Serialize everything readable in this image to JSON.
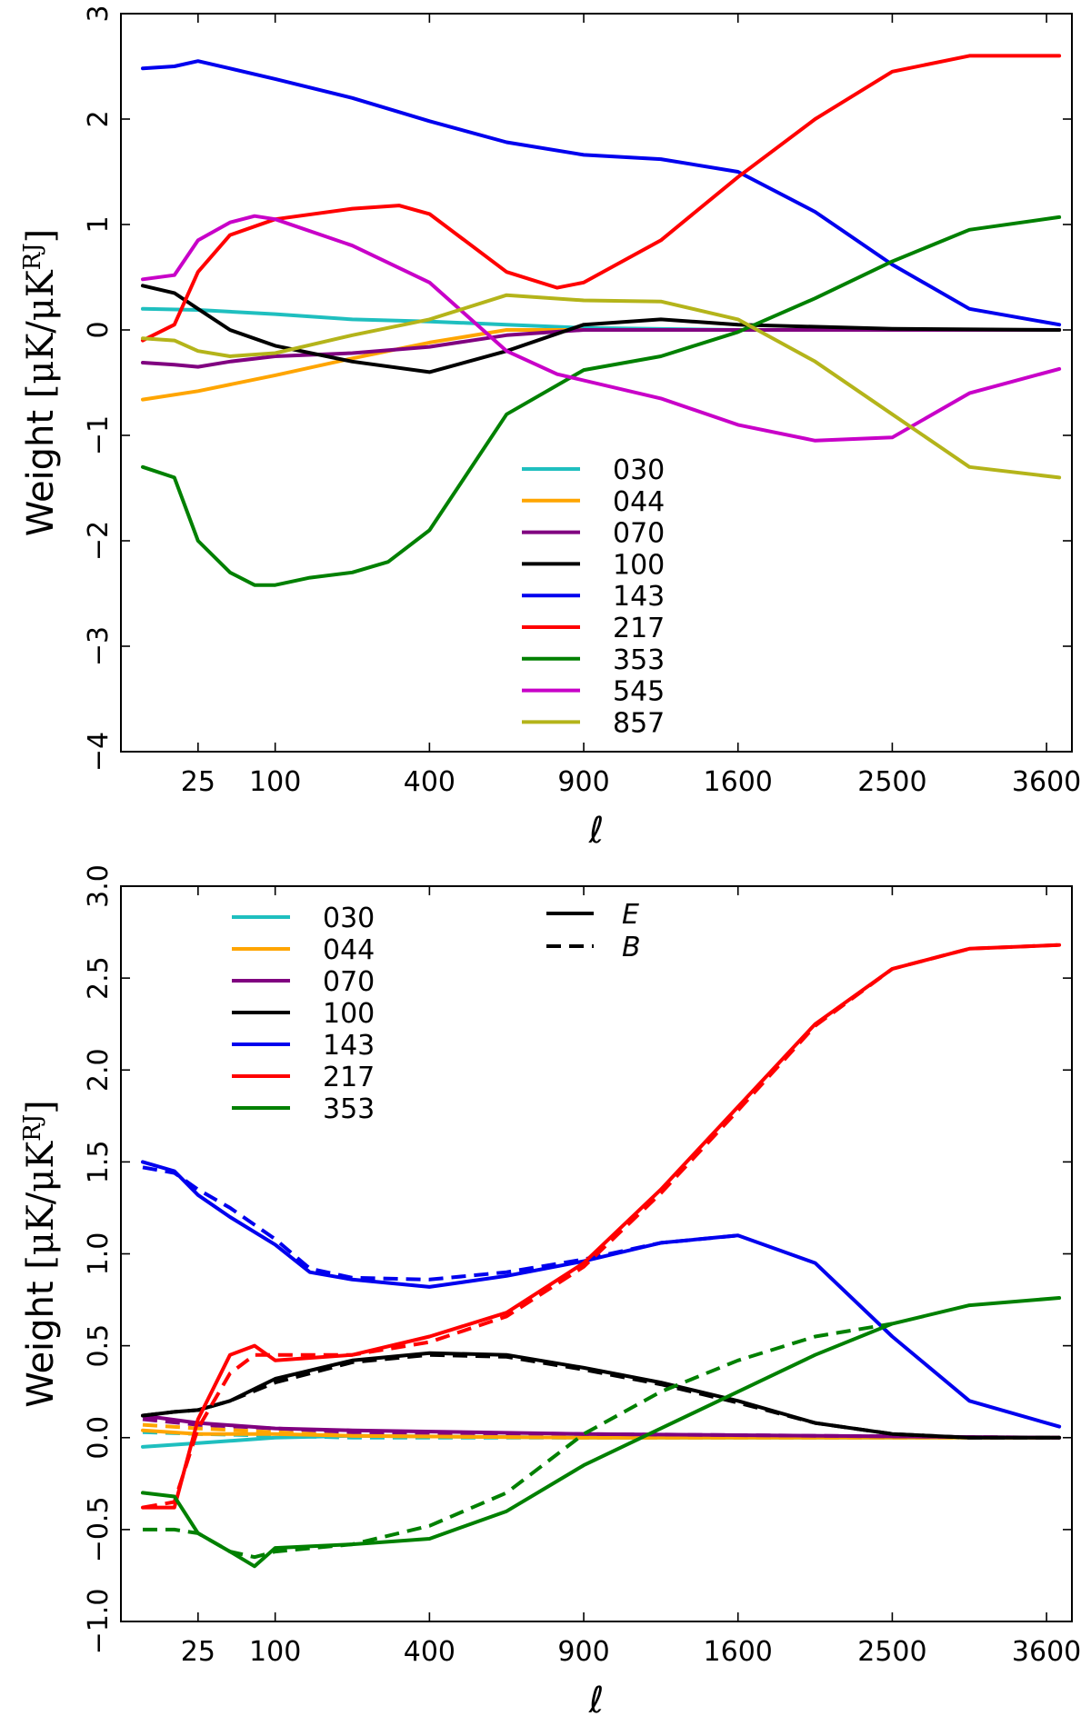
{
  "chart_data": [
    {
      "type": "line",
      "xlabel": "ℓ",
      "ylabel": "Weight",
      "ylabel_unit": "[μK/μK",
      "ylabel_unit_sup": "RJ",
      "ylabel_unit_close": "]",
      "x_scale": "sqrt",
      "xlim": [
        0,
        3800
      ],
      "ylim": [
        -4,
        3
      ],
      "x_ticks": [
        25,
        100,
        400,
        900,
        1600,
        2500,
        3600
      ],
      "y_ticks": [
        -4,
        -3,
        -2,
        -1,
        0,
        1,
        2,
        3
      ],
      "y_tick_labels": [
        "−4",
        "−3",
        "−2",
        "−1",
        "0",
        "1",
        "2",
        "3"
      ],
      "legend_position": "center",
      "series": [
        {
          "name": "030",
          "color": "#1fbfbf",
          "x": [
            2,
            25,
            100,
            225,
            400,
            625,
            900,
            1600,
            3700
          ],
          "y": [
            0.2,
            0.19,
            0.15,
            0.1,
            0.08,
            0.05,
            0.02,
            0.0,
            0.0
          ]
        },
        {
          "name": "044",
          "color": "#ffa500",
          "x": [
            2,
            25,
            100,
            225,
            400,
            625,
            900,
            1600,
            3700
          ],
          "y": [
            -0.66,
            -0.58,
            -0.43,
            -0.27,
            -0.12,
            0.0,
            0.0,
            0.0,
            0.0
          ]
        },
        {
          "name": "070",
          "color": "#800080",
          "x": [
            2,
            12,
            25,
            50,
            100,
            225,
            400,
            625,
            900,
            1600,
            3700
          ],
          "y": [
            -0.31,
            -0.33,
            -0.35,
            -0.3,
            -0.25,
            -0.22,
            -0.16,
            -0.05,
            0.0,
            0.0,
            0.0
          ]
        },
        {
          "name": "100",
          "color": "#000000",
          "x": [
            2,
            12,
            25,
            50,
            100,
            225,
            400,
            625,
            900,
            1225,
            1600,
            2500,
            3700
          ],
          "y": [
            0.42,
            0.35,
            0.2,
            0.0,
            -0.15,
            -0.3,
            -0.4,
            -0.2,
            0.05,
            0.1,
            0.05,
            0.01,
            0.0
          ]
        },
        {
          "name": "143",
          "color": "#0000ee",
          "x": [
            2,
            12,
            25,
            50,
            100,
            225,
            400,
            625,
            900,
            1225,
            1600,
            2025,
            2500,
            3025,
            3700
          ],
          "y": [
            2.48,
            2.5,
            2.55,
            2.48,
            2.38,
            2.2,
            1.98,
            1.78,
            1.66,
            1.62,
            1.5,
            1.12,
            0.62,
            0.2,
            0.05
          ]
        },
        {
          "name": "217",
          "color": "#ff0000",
          "x": [
            2,
            12,
            25,
            50,
            100,
            225,
            325,
            400,
            625,
            800,
            900,
            1225,
            1600,
            2025,
            2500,
            3025,
            3700
          ],
          "y": [
            -0.1,
            0.05,
            0.55,
            0.9,
            1.05,
            1.15,
            1.18,
            1.1,
            0.55,
            0.4,
            0.45,
            0.85,
            1.45,
            2.0,
            2.45,
            2.6,
            2.6
          ]
        },
        {
          "name": "353",
          "color": "#008000",
          "x": [
            2,
            12,
            25,
            50,
            75,
            100,
            150,
            225,
            300,
            400,
            625,
            900,
            1225,
            1600,
            2025,
            2500,
            3025,
            3700
          ],
          "y": [
            -1.3,
            -1.4,
            -2.0,
            -2.3,
            -2.42,
            -2.42,
            -2.35,
            -2.3,
            -2.2,
            -1.9,
            -0.8,
            -0.38,
            -0.25,
            -0.02,
            0.3,
            0.65,
            0.95,
            1.07
          ]
        },
        {
          "name": "545",
          "color": "#c800c8",
          "x": [
            2,
            12,
            25,
            50,
            75,
            100,
            225,
            400,
            625,
            800,
            1225,
            1600,
            2025,
            2500,
            3025,
            3700
          ],
          "y": [
            0.48,
            0.52,
            0.85,
            1.02,
            1.08,
            1.05,
            0.8,
            0.45,
            -0.2,
            -0.42,
            -0.65,
            -0.9,
            -1.05,
            -1.02,
            -0.6,
            -0.37
          ]
        },
        {
          "name": "857",
          "color": "#b4b41a",
          "x": [
            2,
            12,
            25,
            50,
            100,
            225,
            400,
            625,
            900,
            1225,
            1600,
            2025,
            2500,
            3025,
            3700
          ],
          "y": [
            -0.08,
            -0.1,
            -0.2,
            -0.25,
            -0.22,
            -0.05,
            0.1,
            0.33,
            0.28,
            0.27,
            0.1,
            -0.3,
            -0.8,
            -1.3,
            -1.4
          ]
        }
      ]
    },
    {
      "type": "line",
      "xlabel": "ℓ",
      "ylabel": "Weight",
      "ylabel_unit": "[μK/μK",
      "ylabel_unit_sup": "RJ",
      "ylabel_unit_close": "]",
      "x_scale": "sqrt",
      "xlim": [
        0,
        3800
      ],
      "ylim": [
        -1.0,
        3.0
      ],
      "x_ticks": [
        25,
        100,
        400,
        900,
        1600,
        2500,
        3600
      ],
      "y_ticks": [
        -1.0,
        -0.5,
        0.0,
        0.5,
        1.0,
        1.5,
        2.0,
        2.5,
        3.0
      ],
      "y_tick_labels": [
        "−1.0",
        "−0.5",
        "0.0",
        "0.5",
        "1.0",
        "1.5",
        "2.0",
        "2.5",
        "3.0"
      ],
      "legend_position": "top-left",
      "style_legend": [
        {
          "label": "E",
          "dash": "solid"
        },
        {
          "label": "B",
          "dash": "dashed"
        }
      ],
      "series": [
        {
          "name": "030",
          "color": "#1fbfbf",
          "E": {
            "x": [
              2,
              25,
              100,
              225,
              900,
              3700
            ],
            "y": [
              -0.05,
              -0.03,
              0.0,
              0.01,
              0.0,
              0.0
            ]
          },
          "B": {
            "x": [
              2,
              25,
              100,
              225,
              900,
              3700
            ],
            "y": [
              0.03,
              0.02,
              0.01,
              0.0,
              0.0,
              0.0
            ]
          }
        },
        {
          "name": "044",
          "color": "#ffa500",
          "E": {
            "x": [
              2,
              25,
              100,
              225,
              900,
              3700
            ],
            "y": [
              0.04,
              0.02,
              0.02,
              0.01,
              0.0,
              0.0
            ]
          },
          "B": {
            "x": [
              2,
              25,
              100,
              225,
              900,
              3700
            ],
            "y": [
              0.07,
              0.05,
              0.03,
              0.01,
              0.0,
              0.0
            ]
          }
        },
        {
          "name": "070",
          "color": "#800080",
          "E": {
            "x": [
              2,
              25,
              100,
              225,
              900,
              3700
            ],
            "y": [
              0.12,
              0.08,
              0.05,
              0.04,
              0.02,
              0.0
            ]
          },
          "B": {
            "x": [
              2,
              25,
              100,
              225,
              900,
              3700
            ],
            "y": [
              0.1,
              0.07,
              0.05,
              0.03,
              0.02,
              0.0
            ]
          }
        },
        {
          "name": "100",
          "color": "#000000",
          "E": {
            "x": [
              2,
              12,
              25,
              50,
              100,
              225,
              400,
              625,
              900,
              1225,
              1600,
              2025,
              2500,
              3025,
              3700
            ],
            "y": [
              0.12,
              0.14,
              0.15,
              0.2,
              0.32,
              0.42,
              0.46,
              0.45,
              0.38,
              0.3,
              0.2,
              0.08,
              0.02,
              0.0,
              0.0
            ]
          },
          "B": {
            "x": [
              2,
              12,
              25,
              50,
              100,
              225,
              400,
              625,
              900,
              1225,
              1600,
              2025,
              2500,
              3025,
              3700
            ],
            "y": [
              0.12,
              0.14,
              0.15,
              0.2,
              0.3,
              0.41,
              0.45,
              0.44,
              0.37,
              0.29,
              0.19,
              0.08,
              0.02,
              0.0,
              0.0
            ]
          }
        },
        {
          "name": "143",
          "color": "#0000ee",
          "E": {
            "x": [
              2,
              12,
              25,
              50,
              100,
              150,
              225,
              400,
              625,
              900,
              1225,
              1600,
              2025,
              2500,
              3025,
              3700
            ],
            "y": [
              1.5,
              1.45,
              1.32,
              1.2,
              1.05,
              0.9,
              0.86,
              0.82,
              0.88,
              0.96,
              1.06,
              1.1,
              0.95,
              0.55,
              0.2,
              0.06
            ]
          },
          "B": {
            "x": [
              2,
              12,
              25,
              50,
              100,
              150,
              225,
              400,
              625,
              900,
              1225,
              1600
            ],
            "y": [
              1.47,
              1.44,
              1.35,
              1.25,
              1.08,
              0.92,
              0.87,
              0.86,
              0.9,
              0.97,
              1.06,
              1.1
            ]
          }
        },
        {
          "name": "217",
          "color": "#ff0000",
          "E": {
            "x": [
              2,
              12,
              25,
              50,
              75,
              100,
              225,
              400,
              625,
              900,
              1225,
              1600,
              2025,
              2500,
              3025,
              3700
            ],
            "y": [
              -0.38,
              -0.38,
              0.1,
              0.45,
              0.5,
              0.42,
              0.45,
              0.55,
              0.68,
              0.95,
              1.35,
              1.8,
              2.25,
              2.55,
              2.66,
              2.68
            ]
          },
          "B": {
            "x": [
              2,
              12,
              25,
              50,
              75,
              100,
              225,
              400,
              625,
              900,
              1225,
              1600,
              2025,
              2500,
              3025,
              3700
            ],
            "y": [
              -0.38,
              -0.35,
              0.05,
              0.35,
              0.45,
              0.45,
              0.45,
              0.52,
              0.66,
              0.93,
              1.33,
              1.78,
              2.24,
              2.55,
              2.66,
              2.68
            ]
          }
        },
        {
          "name": "353",
          "color": "#008000",
          "E": {
            "x": [
              2,
              12,
              25,
              50,
              75,
              100,
              225,
              400,
              625,
              900,
              1225,
              1600,
              2025,
              2500,
              3025,
              3700
            ],
            "y": [
              -0.3,
              -0.32,
              -0.52,
              -0.62,
              -0.7,
              -0.6,
              -0.58,
              -0.55,
              -0.4,
              -0.15,
              0.05,
              0.25,
              0.45,
              0.62,
              0.72,
              0.76
            ]
          },
          "B": {
            "x": [
              2,
              12,
              25,
              50,
              75,
              100,
              225,
              400,
              625,
              900,
              1225,
              1600,
              2025,
              2500
            ],
            "y": [
              -0.5,
              -0.5,
              -0.52,
              -0.62,
              -0.65,
              -0.62,
              -0.58,
              -0.48,
              -0.3,
              0.02,
              0.25,
              0.42,
              0.55,
              0.62
            ]
          }
        }
      ]
    }
  ]
}
